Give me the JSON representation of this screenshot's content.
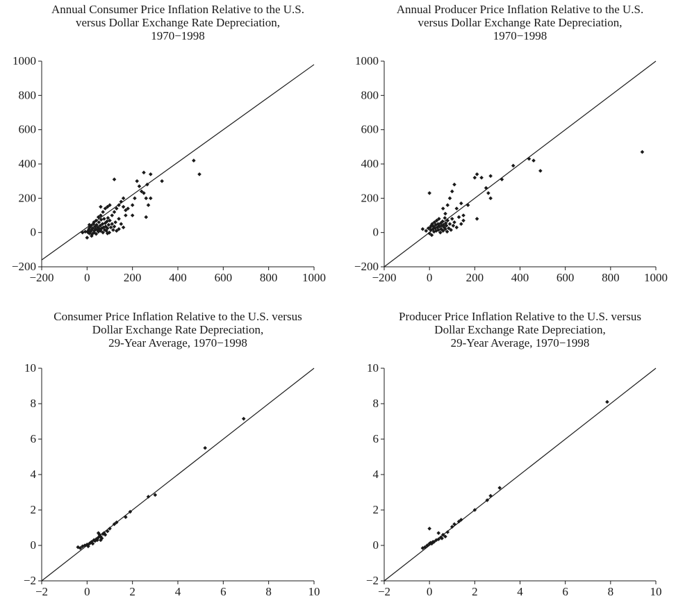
{
  "chart_data": [
    {
      "type": "scatter",
      "title": [
        "Annual Consumer Price Inflation Relative to the U.S.",
        "versus Dollar Exchange Rate Depreciation,",
        "1970−1998"
      ],
      "xlim": [
        -200,
        1000
      ],
      "ylim": [
        -200,
        1000
      ],
      "xticks": [
        -200,
        0,
        200,
        400,
        600,
        800,
        1000
      ],
      "yticks": [
        -200,
        0,
        200,
        400,
        600,
        800,
        1000
      ],
      "xtick_labels": [
        "−200",
        "0",
        "200",
        "400",
        "600",
        "800",
        "1000"
      ],
      "ytick_labels": [
        "−200",
        "0",
        "200",
        "400",
        "600",
        "800",
        "1000"
      ],
      "reference_line": [
        [
          -200,
          -160
        ],
        [
          1000,
          980
        ]
      ],
      "marker_color": "#1a1a1a",
      "points": [
        [
          -20,
          0
        ],
        [
          -8,
          5
        ],
        [
          0,
          -30
        ],
        [
          3,
          2
        ],
        [
          5,
          10
        ],
        [
          8,
          20
        ],
        [
          10,
          -5
        ],
        [
          12,
          30
        ],
        [
          15,
          5
        ],
        [
          18,
          40
        ],
        [
          20,
          15
        ],
        [
          22,
          -10
        ],
        [
          25,
          25
        ],
        [
          28,
          50
        ],
        [
          30,
          0
        ],
        [
          32,
          10
        ],
        [
          35,
          35
        ],
        [
          38,
          20
        ],
        [
          40,
          -8
        ],
        [
          42,
          45
        ],
        [
          45,
          15
        ],
        [
          48,
          30
        ],
        [
          50,
          5
        ],
        [
          52,
          60
        ],
        [
          55,
          20
        ],
        [
          58,
          40
        ],
        [
          60,
          10
        ],
        [
          62,
          75
        ],
        [
          65,
          25
        ],
        [
          68,
          50
        ],
        [
          70,
          0
        ],
        [
          72,
          30
        ],
        [
          75,
          80
        ],
        [
          78,
          15
        ],
        [
          80,
          55
        ],
        [
          82,
          35
        ],
        [
          85,
          10
        ],
        [
          88,
          65
        ],
        [
          90,
          25
        ],
        [
          92,
          85
        ],
        [
          95,
          45
        ],
        [
          98,
          0
        ],
        [
          100,
          70
        ],
        [
          105,
          30
        ],
        [
          110,
          50
        ],
        [
          115,
          15
        ],
        [
          120,
          35
        ],
        [
          125,
          60
        ],
        [
          130,
          10
        ],
        [
          140,
          80
        ],
        [
          150,
          50
        ],
        [
          160,
          30
        ],
        [
          10,
          45
        ],
        [
          20,
          -20
        ],
        [
          30,
          60
        ],
        [
          40,
          70
        ],
        [
          50,
          90
        ],
        [
          60,
          100
        ],
        [
          70,
          120
        ],
        [
          80,
          140
        ],
        [
          90,
          150
        ],
        [
          60,
          150
        ],
        [
          100,
          160
        ],
        [
          110,
          100
        ],
        [
          120,
          120
        ],
        [
          130,
          140
        ],
        [
          140,
          160
        ],
        [
          150,
          180
        ],
        [
          160,
          150
        ],
        [
          170,
          130
        ],
        [
          180,
          140
        ],
        [
          200,
          160
        ],
        [
          120,
          310
        ],
        [
          210,
          200
        ],
        [
          220,
          300
        ],
        [
          230,
          270
        ],
        [
          240,
          240
        ],
        [
          250,
          230
        ],
        [
          250,
          350
        ],
        [
          260,
          90
        ],
        [
          265,
          280
        ],
        [
          270,
          160
        ],
        [
          280,
          200
        ],
        [
          280,
          340
        ],
        [
          330,
          300
        ],
        [
          160,
          200
        ],
        [
          170,
          100
        ],
        [
          140,
          20
        ],
        [
          90,
          -5
        ],
        [
          200,
          100
        ],
        [
          260,
          200
        ],
        [
          470,
          420
        ],
        [
          495,
          340
        ]
      ]
    },
    {
      "type": "scatter",
      "title": [
        "Annual Producer Price Inflation Relative to the U.S.",
        "versus Dollar Exchange Rate Depreciation,",
        "1970−1998"
      ],
      "xlim": [
        -200,
        1000
      ],
      "ylim": [
        -200,
        1000
      ],
      "xticks": [
        -200,
        0,
        200,
        400,
        600,
        800,
        1000
      ],
      "yticks": [
        -200,
        0,
        200,
        400,
        600,
        800,
        1000
      ],
      "xtick_labels": [
        "−200",
        "0",
        "200",
        "400",
        "600",
        "800",
        "1000"
      ],
      "ytick_labels": [
        "−200",
        "0",
        "200",
        "400",
        "600",
        "800",
        "1000"
      ],
      "reference_line": [
        [
          -200,
          -200
        ],
        [
          1000,
          1000
        ]
      ],
      "marker_color": "#1a1a1a",
      "points": [
        [
          -30,
          20
        ],
        [
          -15,
          10
        ],
        [
          -5,
          25
        ],
        [
          0,
          -5
        ],
        [
          3,
          30
        ],
        [
          5,
          15
        ],
        [
          8,
          40
        ],
        [
          10,
          -15
        ],
        [
          12,
          50
        ],
        [
          15,
          20
        ],
        [
          18,
          35
        ],
        [
          20,
          5
        ],
        [
          22,
          60
        ],
        [
          25,
          25
        ],
        [
          28,
          45
        ],
        [
          30,
          10
        ],
        [
          32,
          70
        ],
        [
          35,
          30
        ],
        [
          38,
          50
        ],
        [
          40,
          15
        ],
        [
          42,
          80
        ],
        [
          45,
          35
        ],
        [
          48,
          0
        ],
        [
          50,
          55
        ],
        [
          52,
          20
        ],
        [
          55,
          40
        ],
        [
          58,
          65
        ],
        [
          60,
          10
        ],
        [
          62,
          45
        ],
        [
          65,
          30
        ],
        [
          68,
          85
        ],
        [
          70,
          20
        ],
        [
          72,
          55
        ],
        [
          75,
          40
        ],
        [
          78,
          5
        ],
        [
          80,
          70
        ],
        [
          85,
          25
        ],
        [
          90,
          50
        ],
        [
          95,
          15
        ],
        [
          100,
          80
        ],
        [
          105,
          40
        ],
        [
          110,
          60
        ],
        [
          120,
          30
        ],
        [
          130,
          90
        ],
        [
          140,
          50
        ],
        [
          150,
          70
        ],
        [
          0,
          230
        ],
        [
          60,
          140
        ],
        [
          70,
          110
        ],
        [
          80,
          160
        ],
        [
          90,
          200
        ],
        [
          100,
          240
        ],
        [
          110,
          280
        ],
        [
          120,
          140
        ],
        [
          140,
          170
        ],
        [
          150,
          100
        ],
        [
          170,
          160
        ],
        [
          200,
          320
        ],
        [
          210,
          340
        ],
        [
          230,
          320
        ],
        [
          250,
          260
        ],
        [
          260,
          230
        ],
        [
          270,
          200
        ],
        [
          270,
          330
        ],
        [
          210,
          80
        ],
        [
          320,
          310
        ],
        [
          370,
          390
        ],
        [
          440,
          430
        ],
        [
          460,
          420
        ],
        [
          490,
          360
        ],
        [
          940,
          470
        ]
      ]
    },
    {
      "type": "scatter",
      "title": [
        "Consumer Price Inflation Relative to the U.S. versus",
        "Dollar Exchange Rate Depreciation,",
        "29-Year Average, 1970−1998"
      ],
      "xlim": [
        -2,
        10
      ],
      "ylim": [
        -2,
        10
      ],
      "xticks": [
        -2,
        0,
        2,
        4,
        6,
        8,
        10
      ],
      "yticks": [
        -2,
        0,
        2,
        4,
        6,
        8,
        10
      ],
      "xtick_labels": [
        "−2",
        "0",
        "2",
        "4",
        "6",
        "8",
        "10"
      ],
      "ytick_labels": [
        "−2",
        "0",
        "2",
        "4",
        "6",
        "8",
        "10"
      ],
      "reference_line": [
        [
          -2,
          -2
        ],
        [
          10,
          10
        ]
      ],
      "marker_color": "#1a1a1a",
      "points": [
        [
          -0.4,
          -0.1
        ],
        [
          -0.3,
          -0.15
        ],
        [
          -0.2,
          -0.05
        ],
        [
          -0.1,
          0
        ],
        [
          0,
          0.05
        ],
        [
          0.05,
          -0.05
        ],
        [
          0.1,
          0.1
        ],
        [
          0.15,
          0.15
        ],
        [
          0.2,
          0.2
        ],
        [
          0.3,
          0.3
        ],
        [
          0.35,
          0.25
        ],
        [
          0.4,
          0.35
        ],
        [
          0.45,
          0.3
        ],
        [
          0.5,
          0.45
        ],
        [
          0.55,
          0.6
        ],
        [
          0.6,
          0.5
        ],
        [
          0.65,
          0.4
        ],
        [
          0.7,
          0.65
        ],
        [
          0.75,
          0.7
        ],
        [
          0.8,
          0.6
        ],
        [
          0.9,
          0.8
        ],
        [
          1.0,
          0.95
        ],
        [
          1.2,
          1.2
        ],
        [
          1.3,
          1.3
        ],
        [
          1.7,
          1.6
        ],
        [
          1.9,
          1.9
        ],
        [
          2.7,
          2.75
        ],
        [
          3.0,
          2.85
        ],
        [
          5.2,
          5.5
        ],
        [
          6.9,
          7.15
        ],
        [
          0.25,
          0.1
        ],
        [
          0.5,
          0.7
        ],
        [
          0.6,
          0.3
        ]
      ]
    },
    {
      "type": "scatter",
      "title": [
        "Producer Price Inflation Relative to the U.S. versus",
        "Dollar Exchange Rate Depreciation,",
        "29-Year Average, 1970−1998"
      ],
      "xlim": [
        -2,
        10
      ],
      "ylim": [
        -2,
        10
      ],
      "xticks": [
        -2,
        0,
        2,
        4,
        6,
        8,
        10
      ],
      "yticks": [
        -2,
        0,
        2,
        4,
        6,
        8,
        10
      ],
      "xtick_labels": [
        "−2",
        "0",
        "2",
        "4",
        "6",
        "8",
        "10"
      ],
      "ytick_labels": [
        "−2",
        "0",
        "2",
        "4",
        "6",
        "8",
        "10"
      ],
      "reference_line": [
        [
          -2,
          -2
        ],
        [
          10,
          10
        ]
      ],
      "marker_color": "#1a1a1a",
      "points": [
        [
          -0.3,
          -0.15
        ],
        [
          -0.2,
          -0.1
        ],
        [
          -0.1,
          0
        ],
        [
          0,
          0.1
        ],
        [
          0.05,
          0.15
        ],
        [
          0.1,
          0.1
        ],
        [
          0.15,
          0.2
        ],
        [
          0.2,
          0.2
        ],
        [
          0.3,
          0.3
        ],
        [
          0.4,
          0.35
        ],
        [
          0.5,
          0.45
        ],
        [
          0.55,
          0.4
        ],
        [
          0.6,
          0.6
        ],
        [
          0.7,
          0.5
        ],
        [
          0.8,
          0.75
        ],
        [
          1.0,
          1.05
        ],
        [
          1.1,
          1.2
        ],
        [
          1.3,
          1.35
        ],
        [
          1.4,
          1.45
        ],
        [
          2.0,
          2.0
        ],
        [
          2.55,
          2.55
        ],
        [
          2.7,
          2.8
        ],
        [
          3.1,
          3.25
        ],
        [
          0.0,
          0.95
        ],
        [
          0.4,
          0.7
        ],
        [
          7.85,
          8.1
        ]
      ]
    }
  ]
}
